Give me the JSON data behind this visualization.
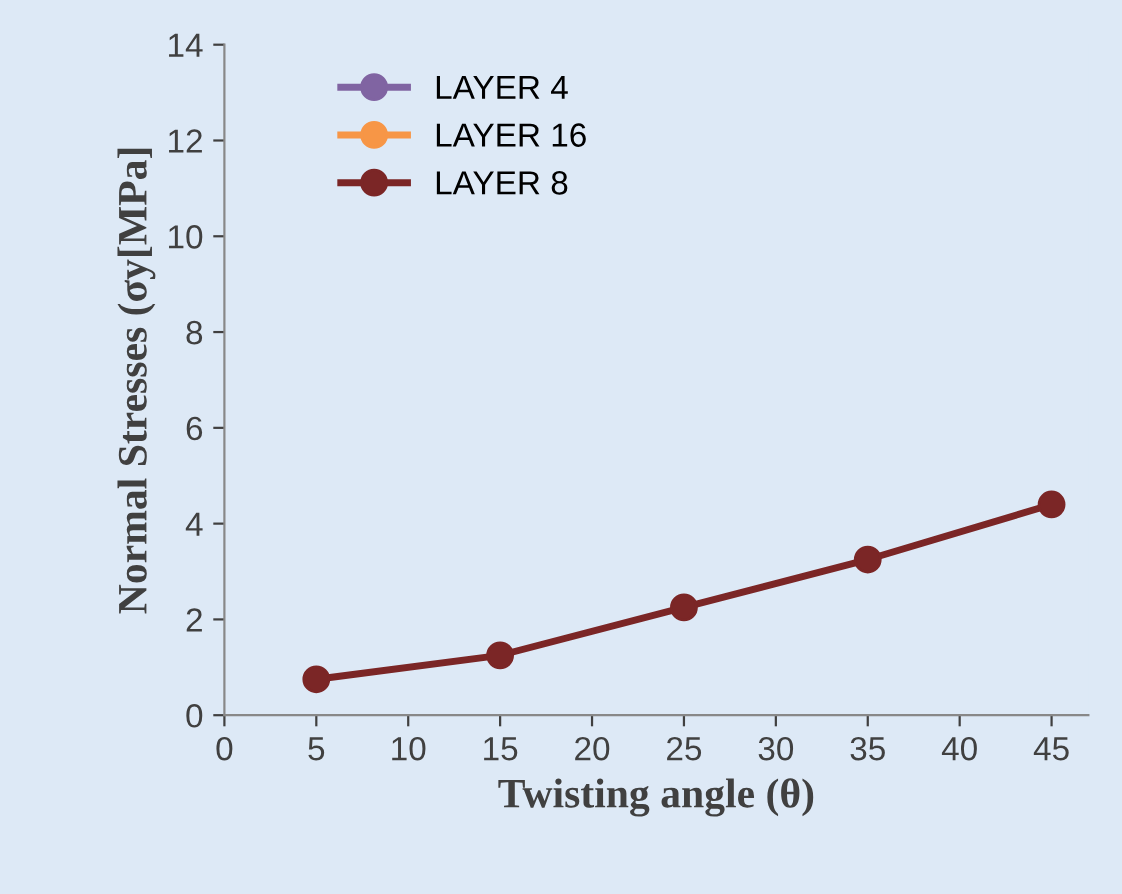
{
  "chart_data": {
    "type": "line",
    "xlabel": "Twisting angle (θ)",
    "ylabel": "Normal Stresses (σy[MPa]",
    "x": [
      5,
      15,
      25,
      35,
      45
    ],
    "series": [
      {
        "name": "LAYER 4",
        "color": "#8064a2",
        "values": [
          null,
          null,
          null,
          null,
          null
        ]
      },
      {
        "name": "LAYER 16",
        "color": "#f79646",
        "values": [
          null,
          null,
          null,
          null,
          null
        ]
      },
      {
        "name": "LAYER 8",
        "color": "#7b2626",
        "values": [
          0.75,
          1.25,
          2.25,
          3.25,
          4.4
        ]
      }
    ],
    "xlim": [
      0,
      47
    ],
    "xticks": [
      0,
      5,
      10,
      15,
      20,
      25,
      30,
      35,
      40,
      45
    ],
    "ylim": [
      0,
      14
    ],
    "yticks": [
      0,
      2,
      4,
      6,
      8,
      10,
      12,
      14
    ],
    "grid": false,
    "legend": "top left",
    "marker": "circle",
    "line_style": "solid"
  }
}
